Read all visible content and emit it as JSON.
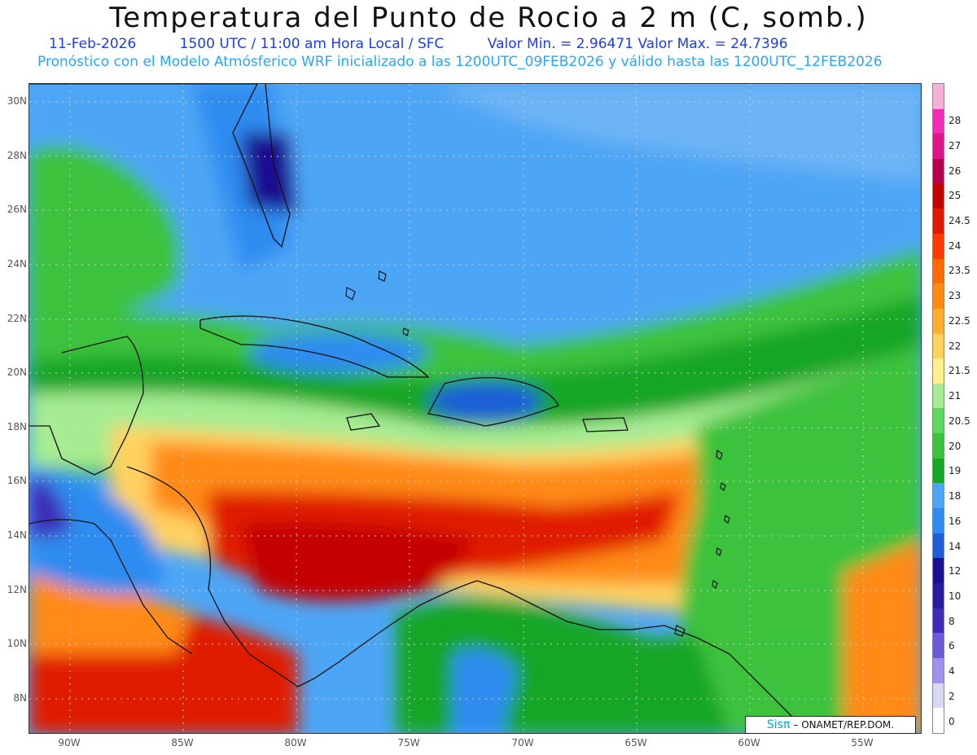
{
  "title": "Temperatura del Punto de Rocio a 2 m (C, somb.)",
  "subtitle": {
    "date": "11-Feb-2026",
    "time": "1500 UTC / 11:00 am Hora Local / SFC",
    "minmax": "Valor Min. = 2.96471  Valor Max. = 24.7396"
  },
  "subtitle2": "Pronóstico con el Modelo Atmósferico WRF inicializado a las 1200UTC_09FEB2026 y válido hasta las  1200UTC_12FEB2026",
  "lat_labels": [
    "30N",
    "28N",
    "26N",
    "24N",
    "22N",
    "20N",
    "18N",
    "16N",
    "14N",
    "12N",
    "10N",
    "8N"
  ],
  "lon_labels": [
    "90W",
    "85W",
    "80W",
    "75W",
    "70W",
    "65W",
    "60W",
    "55W"
  ],
  "legend": {
    "levels": [
      "0",
      "2",
      "4",
      "6",
      "8",
      "10",
      "12",
      "14",
      "16",
      "18",
      "19",
      "20",
      "20.5",
      "21",
      "21.5",
      "22",
      "22.5",
      "23",
      "23.5",
      "24",
      "24.5",
      "25",
      "26",
      "27",
      "28"
    ],
    "colors": [
      "#ffffff",
      "#d8d8f5",
      "#a390ee",
      "#6c5ad8",
      "#3e2cb8",
      "#2a1aa0",
      "#1a1090",
      "#1f5fd6",
      "#2e8cf0",
      "#4da6f5",
      "#16a626",
      "#3cc23c",
      "#5ed85e",
      "#a6ec92",
      "#fff08a",
      "#ffd25e",
      "#ffae2e",
      "#ff8a14",
      "#ff6a00",
      "#ff3a00",
      "#e01a00",
      "#c40000",
      "#b4004a",
      "#e0148a",
      "#f02cb4",
      "#f6b0d8"
    ]
  },
  "credit": {
    "logo": "Sisπ",
    "text": "– ONAMET/REP.DOM."
  }
}
